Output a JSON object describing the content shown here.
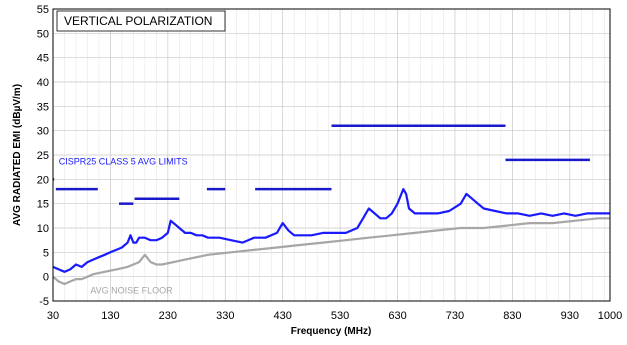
{
  "chart_data": {
    "type": "line",
    "title": "VERTICAL POLARIZATION",
    "xlabel": "Frequency (MHz)",
    "ylabel": "AVG RADIATED EMI (dBµV/m)",
    "xlim": [
      30,
      1000
    ],
    "ylim": [
      -5,
      55
    ],
    "xticks": [
      30,
      130,
      230,
      330,
      430,
      530,
      630,
      730,
      830,
      930,
      1000
    ],
    "yticks": [
      -5,
      0,
      5,
      10,
      15,
      20,
      25,
      30,
      35,
      40,
      45,
      50,
      55
    ],
    "grid": true,
    "colors": {
      "emission": "#1a1aff",
      "noise_floor": "#a6a6a6",
      "limit": "#1a1acc",
      "annotation_limit": "#1a1aff",
      "annotation_noise": "#a6a6a6"
    },
    "annotations": [
      {
        "text": "CISPR25 CLASS 5 AVG LIMITS",
        "x": 40,
        "y": 23,
        "color": "#1a1aff"
      },
      {
        "text": "AVG NOISE FLOOR",
        "x": 95,
        "y": -3.5,
        "color": "#a6a6a6"
      }
    ],
    "series": [
      {
        "key": "emission",
        "x": [
          30,
          40,
          50,
          60,
          70,
          80,
          90,
          100,
          110,
          120,
          130,
          140,
          150,
          160,
          165,
          170,
          175,
          180,
          190,
          200,
          210,
          220,
          230,
          235,
          240,
          245,
          250,
          260,
          270,
          280,
          290,
          300,
          320,
          340,
          360,
          380,
          400,
          420,
          430,
          440,
          445,
          450,
          460,
          480,
          500,
          520,
          540,
          560,
          570,
          580,
          590,
          600,
          610,
          620,
          630,
          640,
          645,
          650,
          660,
          680,
          700,
          720,
          740,
          750,
          760,
          770,
          780,
          800,
          820,
          840,
          860,
          880,
          900,
          920,
          940,
          960,
          980,
          1000
        ],
        "values": [
          2,
          1.5,
          1,
          1.5,
          2.5,
          2,
          3,
          3.5,
          4,
          4.5,
          5,
          5.5,
          6,
          7,
          8.5,
          7,
          7,
          8,
          8,
          7.5,
          7.5,
          8,
          9,
          11.5,
          11,
          10.5,
          10,
          9,
          9,
          8.5,
          8.5,
          8,
          8,
          7.5,
          7,
          8,
          8,
          9,
          11,
          9.5,
          9,
          8.5,
          8.5,
          8.5,
          9,
          9,
          9,
          10,
          12,
          14,
          13,
          12,
          12,
          13,
          15,
          18,
          17,
          14,
          13,
          13,
          13,
          13.5,
          15,
          17,
          16,
          15,
          14,
          13.5,
          13,
          13,
          12.5,
          13,
          12.5,
          13,
          12.5,
          13,
          13,
          13
        ]
      },
      {
        "key": "noise_floor",
        "x": [
          30,
          40,
          50,
          60,
          70,
          80,
          90,
          100,
          120,
          140,
          160,
          180,
          190,
          200,
          210,
          220,
          240,
          260,
          280,
          300,
          340,
          380,
          420,
          460,
          500,
          540,
          580,
          620,
          660,
          700,
          740,
          780,
          820,
          860,
          900,
          940,
          980,
          1000
        ],
        "values": [
          0,
          -1,
          -1.5,
          -1,
          -0.5,
          -0.5,
          0,
          0.5,
          1,
          1.5,
          2,
          3,
          4.5,
          3,
          2.5,
          2.5,
          3,
          3.5,
          4,
          4.5,
          5,
          5.5,
          6,
          6.5,
          7,
          7.5,
          8,
          8.5,
          9,
          9.5,
          10,
          10,
          10.5,
          11,
          11,
          11.5,
          12,
          12
        ]
      }
    ],
    "limits": [
      {
        "x": [
          30,
          32
        ],
        "y": 20
      },
      {
        "x": [
          35,
          108
        ],
        "y": 18
      },
      {
        "x": [
          145,
          170
        ],
        "y": 15
      },
      {
        "x": [
          172,
          250
        ],
        "y": 16
      },
      {
        "x": [
          298,
          330
        ],
        "y": 18
      },
      {
        "x": [
          382,
          515
        ],
        "y": 18
      },
      {
        "x": [
          515,
          818
        ],
        "y": 31
      },
      {
        "x": [
          818,
          965
        ],
        "y": 24
      }
    ]
  }
}
